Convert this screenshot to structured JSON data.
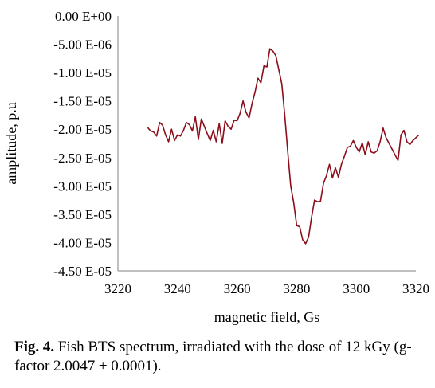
{
  "chart_data": {
    "type": "line",
    "xlabel": "magnetic field, Gs",
    "ylabel": "amplitude, p.u",
    "xlim": [
      3220,
      3320
    ],
    "ylim": [
      -4.5e-05,
      0
    ],
    "x_ticks": [
      "3220",
      "3240",
      "3260",
      "3280",
      "3300",
      "3320"
    ],
    "y_ticks": [
      "0.00 E+00",
      "-5.00 E-06",
      "-1.00 E-05",
      "-1.50 E-05",
      "-2.00 E-05",
      "-2.50 E-05",
      "-3.00 E-05",
      "-3.50 E-05",
      "-4.00 E-05",
      "-4.50 E-05"
    ],
    "grid": false,
    "line_color": "#8b0e1a",
    "series": [
      {
        "x": [
          3230,
          3231,
          3232,
          3233,
          3234,
          3235,
          3236,
          3237,
          3238,
          3239,
          3240,
          3241,
          3242,
          3243,
          3244,
          3245,
          3246,
          3247,
          3248,
          3249,
          3250,
          3251,
          3252,
          3253,
          3254,
          3255,
          3256,
          3257,
          3258,
          3259,
          3260,
          3261,
          3262,
          3263,
          3264,
          3265,
          3266,
          3267,
          3268,
          3269,
          3270,
          3271,
          3272,
          3273,
          3274,
          3275,
          3276,
          3277,
          3278,
          3279,
          3280,
          3281,
          3282,
          3283,
          3284,
          3285,
          3286,
          3287,
          3288,
          3289,
          3290,
          3291,
          3292,
          3293,
          3294,
          3295,
          3296,
          3297,
          3298,
          3299,
          3300,
          3301,
          3302,
          3303,
          3304,
          3305,
          3306,
          3307,
          3308,
          3309,
          3310,
          3311,
          3312,
          3313,
          3314,
          3315,
          3316,
          3317,
          3318,
          3319,
          3320,
          3321
        ],
        "y": [
          -1.97e-05,
          -2.03e-05,
          -2.05e-05,
          -2.12e-05,
          -1.88e-05,
          -1.93e-05,
          -2.1e-05,
          -2.22e-05,
          -2e-05,
          -2.2e-05,
          -2.1e-05,
          -2.12e-05,
          -2.02e-05,
          -1.88e-05,
          -1.92e-05,
          -2.03e-05,
          -1.78e-05,
          -2.18e-05,
          -1.82e-05,
          -1.95e-05,
          -2.08e-05,
          -2.2e-05,
          -2.02e-05,
          -2.22e-05,
          -1.9e-05,
          -2.25e-05,
          -1.85e-05,
          -1.95e-05,
          -2e-05,
          -1.84e-05,
          -1.85e-05,
          -1.72e-05,
          -1.5e-05,
          -1.7e-05,
          -1.8e-05,
          -1.55e-05,
          -1.35e-05,
          -1.1e-05,
          -1.18e-05,
          -8.8e-06,
          -9e-06,
          -5.8e-06,
          -6.2e-06,
          -7e-06,
          -9.5e-06,
          -1.2e-05,
          -1.75e-05,
          -2.4e-05,
          -3e-05,
          -3.3e-05,
          -3.7e-05,
          -3.72e-05,
          -3.95e-05,
          -4.02e-05,
          -3.9e-05,
          -3.55e-05,
          -3.25e-05,
          -3.28e-05,
          -3.27e-05,
          -2.95e-05,
          -2.82e-05,
          -2.62e-05,
          -2.86e-05,
          -2.68e-05,
          -2.85e-05,
          -2.62e-05,
          -2.48e-05,
          -2.32e-05,
          -2.3e-05,
          -2.2e-05,
          -2.32e-05,
          -2.4e-05,
          -2.24e-05,
          -2.45e-05,
          -2.22e-05,
          -2.4e-05,
          -2.42e-05,
          -2.38e-05,
          -2.22e-05,
          -1.98e-05,
          -2.15e-05,
          -2.25e-05,
          -2.35e-05,
          -2.45e-05,
          -2.55e-05,
          -2.1e-05,
          -2.02e-05,
          -2.22e-05,
          -2.27e-05,
          -2.2e-05,
          -2.15e-05,
          -2.1e-05
        ]
      }
    ]
  },
  "caption": {
    "label": "Fig. 4.",
    "text": " Fish BTS spectrum, irradiated with the dose of 12 kGy (g-factor 2.0047 ± 0.0001)."
  }
}
